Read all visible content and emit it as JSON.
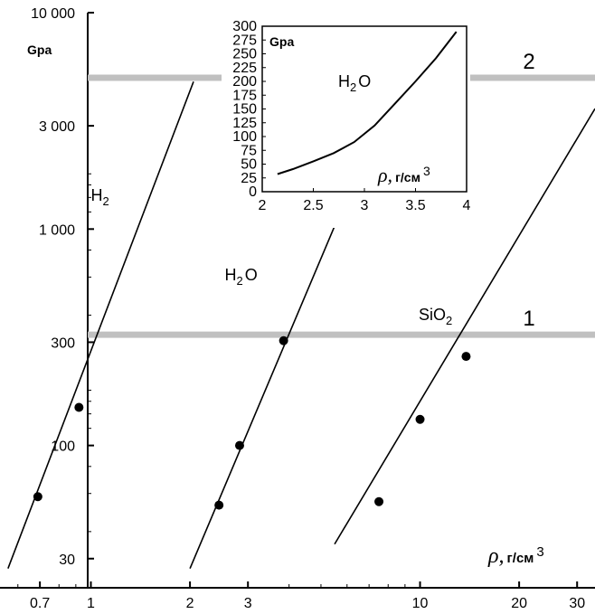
{
  "chart_data": [
    {
      "type": "line",
      "subtype": "log-log",
      "y_unit_label": "Gpa",
      "x_unit": {
        "symbol": "ρ,",
        "unit": "г/см",
        "exp": "3"
      },
      "xscale": "log",
      "yscale": "log",
      "xlim": [
        0.55,
        34
      ],
      "ylim": [
        22,
        10000
      ],
      "x_ticks": [
        {
          "value": 0.7,
          "label": "0.7"
        },
        {
          "value": 1,
          "label": "1"
        },
        {
          "value": 2,
          "label": "2"
        },
        {
          "value": 3,
          "label": "3"
        },
        {
          "value": 10,
          "label": "10"
        },
        {
          "value": 20,
          "label": "20"
        },
        {
          "value": 30,
          "label": "30"
        }
      ],
      "y_ticks": [
        {
          "value": 30,
          "label": "30"
        },
        {
          "value": 100,
          "label": "100"
        },
        {
          "value": 300,
          "label": "300"
        },
        {
          "value": 1000,
          "label": "1 000"
        },
        {
          "value": 3000,
          "label": "3 000"
        },
        {
          "value": 10000,
          "label": "10 000"
        }
      ],
      "reference_lines": [
        {
          "label": "1",
          "y": 325
        },
        {
          "label": "2",
          "y": 5000
        }
      ],
      "series": [
        {
          "name_main": "H",
          "name_sub": "2",
          "line": [
            [
              0.56,
              27
            ],
            [
              2.05,
              4800
            ]
          ],
          "points": [
            [
              0.69,
              58
            ],
            [
              0.92,
              150
            ]
          ],
          "label_at": [
            1.0,
            1350
          ]
        },
        {
          "name_main": "H",
          "name_sub": "2",
          "name_tail": "O",
          "line": [
            [
              2.0,
              27
            ],
            [
              5.6,
              1100
            ]
          ],
          "points": [
            [
              2.45,
              53
            ],
            [
              2.83,
              100
            ],
            [
              3.85,
              305
            ]
          ],
          "label_at": [
            2.55,
            580
          ]
        },
        {
          "name_main": "SiO",
          "name_sub": "2",
          "line": [
            [
              5.5,
              35
            ],
            [
              34,
              3600
            ]
          ],
          "points": [
            [
              7.5,
              55
            ],
            [
              10.0,
              132
            ],
            [
              13.8,
              258
            ]
          ],
          "label_at": [
            9.9,
            380
          ]
        }
      ]
    },
    {
      "type": "line",
      "y_unit_label": "Gpa",
      "series_label": {
        "main": "H",
        "sub": "2",
        "tail": "O"
      },
      "x_unit": {
        "symbol": "ρ,",
        "unit": "г/см",
        "exp": "3"
      },
      "xlim": [
        2,
        4
      ],
      "ylim": [
        0,
        300
      ],
      "x_ticks": [
        "2",
        "2.5",
        "3",
        "3.5",
        "4"
      ],
      "y_ticks": [
        "0",
        "25",
        "50",
        "75",
        "100",
        "125",
        "150",
        "175",
        "200",
        "225",
        "250",
        "275",
        "300"
      ],
      "x": [
        2.15,
        2.3,
        2.5,
        2.7,
        2.9,
        3.1,
        3.3,
        3.5,
        3.7,
        3.9
      ],
      "y": [
        32,
        41,
        55,
        70,
        90,
        120,
        160,
        200,
        242,
        290
      ]
    }
  ]
}
